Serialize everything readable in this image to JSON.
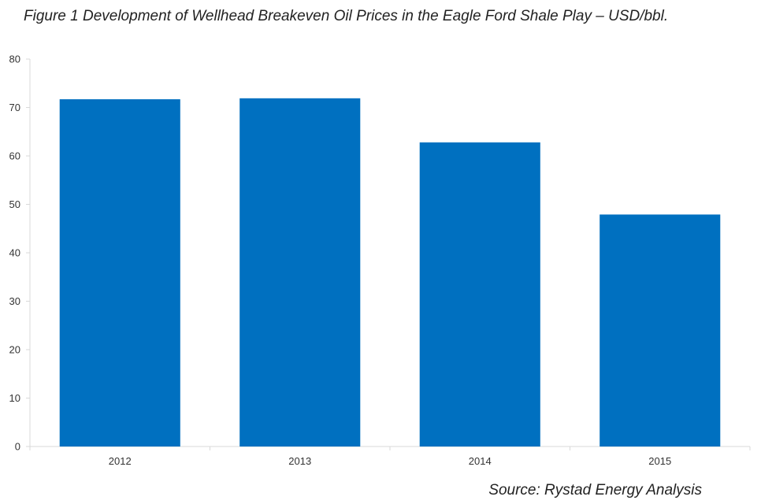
{
  "chart_data": {
    "type": "bar",
    "title": "Figure 1 Development of Wellhead Breakeven Oil Prices in the Eagle Ford Shale Play – USD/bbl.",
    "categories": [
      "2012",
      "2013",
      "2014",
      "2015"
    ],
    "values": [
      71.7,
      71.9,
      62.8,
      47.9
    ],
    "ylim": [
      0,
      80
    ],
    "yticks": [
      0,
      10,
      20,
      30,
      40,
      50,
      60,
      70,
      80
    ],
    "xlabel": "",
    "ylabel": "",
    "grid": false,
    "bar_color": "#0070C0",
    "source": "Source: Rystad Energy Analysis"
  }
}
